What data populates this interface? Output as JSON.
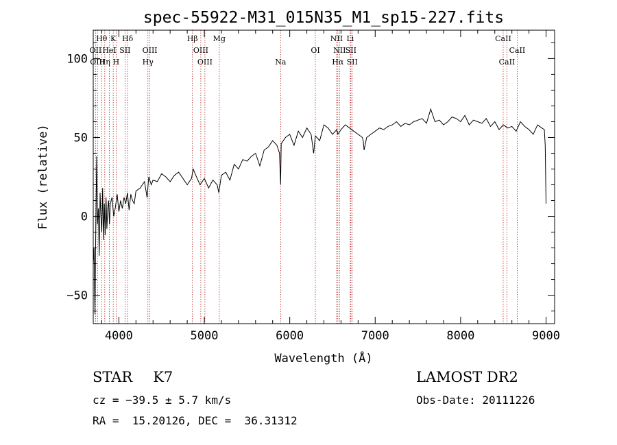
{
  "chart_data": {
    "type": "line",
    "title": "spec-55922-M31_015N35_M1_sp15-227.fits",
    "xlabel": "Wavelength (Å)",
    "ylabel": "Flux (relative)",
    "xlim": [
      3700,
      9100
    ],
    "ylim": [
      -68,
      118
    ],
    "x_ticks": [
      4000,
      5000,
      6000,
      7000,
      8000,
      9000
    ],
    "y_ticks": [
      -50,
      0,
      50,
      100
    ],
    "x_tick_labels": [
      "4000",
      "5000",
      "6000",
      "7000",
      "8000",
      "9000"
    ],
    "y_tick_labels": [
      "−50",
      "0",
      "50",
      "100"
    ],
    "grid": false,
    "series": [
      {
        "x": [
          3700,
          3710,
          3720,
          3730,
          3740,
          3750,
          3760,
          3770,
          3780,
          3790,
          3800,
          3810,
          3820,
          3830,
          3840,
          3850,
          3860,
          3870,
          3880,
          3890,
          3900,
          3920,
          3940,
          3960,
          3980,
          4000,
          4020,
          4040,
          4060,
          4080,
          4100,
          4120,
          4140,
          4160,
          4180,
          4200,
          4250,
          4300,
          4330,
          4350,
          4380,
          4400,
          4450,
          4500,
          4550,
          4600,
          4650,
          4700,
          4750,
          4800,
          4850,
          4870,
          4900,
          4950,
          5000,
          5050,
          5100,
          5150,
          5170,
          5200,
          5250,
          5300,
          5350,
          5400,
          5450,
          5500,
          5550,
          5600,
          5650,
          5700,
          5750,
          5800,
          5850,
          5880,
          5893,
          5900,
          5950,
          6000,
          6050,
          6100,
          6150,
          6200,
          6250,
          6280,
          6300,
          6350,
          6400,
          6450,
          6500,
          6550,
          6563,
          6600,
          6650,
          6700,
          6750,
          6800,
          6850,
          6860,
          6870,
          6900,
          6950,
          7000,
          7050,
          7100,
          7150,
          7200,
          7250,
          7300,
          7350,
          7400,
          7450,
          7500,
          7550,
          7600,
          7650,
          7700,
          7750,
          7800,
          7850,
          7900,
          7950,
          8000,
          8050,
          8100,
          8150,
          8200,
          8250,
          8300,
          8350,
          8400,
          8450,
          8500,
          8550,
          8600,
          8650,
          8700,
          8750,
          8800,
          8850,
          8900,
          8950,
          8980,
          8990,
          9000
        ],
        "y": [
          -30,
          -20,
          -62,
          -10,
          38,
          -5,
          5,
          -25,
          15,
          0,
          -10,
          18,
          -15,
          8,
          -12,
          12,
          -8,
          5,
          10,
          -5,
          8,
          12,
          0,
          6,
          14,
          3,
          10,
          5,
          12,
          8,
          15,
          4,
          14,
          10,
          8,
          16,
          18,
          22,
          12,
          25,
          20,
          23,
          22,
          27,
          25,
          22,
          26,
          28,
          24,
          20,
          24,
          30,
          26,
          20,
          24,
          18,
          23,
          20,
          15,
          26,
          28,
          23,
          33,
          30,
          36,
          35,
          38,
          40,
          32,
          42,
          44,
          48,
          45,
          40,
          20,
          46,
          50,
          52,
          45,
          54,
          50,
          56,
          52,
          40,
          51,
          48,
          58,
          56,
          52,
          55,
          52,
          55,
          58,
          56,
          54,
          52,
          50,
          48,
          42,
          50,
          52,
          54,
          56,
          55,
          57,
          58,
          60,
          57,
          59,
          58,
          60,
          61,
          62,
          59,
          68,
          60,
          61,
          58,
          60,
          63,
          62,
          60,
          64,
          58,
          61,
          60,
          59,
          62,
          57,
          60,
          55,
          58,
          56,
          57,
          54,
          60,
          57,
          55,
          52,
          58,
          56,
          55,
          45,
          8
        ]
      }
    ],
    "spectral_lines": [
      {
        "name": "Hθ",
        "x": 3798,
        "row": 1
      },
      {
        "name": "K",
        "x": 3934,
        "row": 1
      },
      {
        "name": "Hδ",
        "x": 4102,
        "row": 1
      },
      {
        "name": "Hβ",
        "x": 4861,
        "row": 1
      },
      {
        "name": "Mg",
        "x": 5175,
        "row": 1
      },
      {
        "name": "NII",
        "x": 6548,
        "row": 1
      },
      {
        "name": "Li",
        "x": 6708,
        "row": 1
      },
      {
        "name": "CaII",
        "x": 8498,
        "row": 1
      },
      {
        "name": "OII",
        "x": 3727,
        "row": 2
      },
      {
        "name": "HeI",
        "x": 3889,
        "row": 2
      },
      {
        "name": "SII",
        "x": 4072,
        "row": 2
      },
      {
        "name": "OIII",
        "x": 4363,
        "row": 2
      },
      {
        "name": "OIII",
        "x": 4959,
        "row": 2
      },
      {
        "name": "OI",
        "x": 6300,
        "row": 2
      },
      {
        "name": "NII",
        "x": 6583,
        "row": 2
      },
      {
        "name": "SII",
        "x": 6716,
        "row": 2
      },
      {
        "name": "CaII",
        "x": 8662,
        "row": 2
      },
      {
        "name": "OIII",
        "x": 3750,
        "row": 3
      },
      {
        "name": "Hη",
        "x": 3835,
        "row": 3
      },
      {
        "name": "H",
        "x": 3968,
        "row": 3
      },
      {
        "name": "Hγ",
        "x": 4340,
        "row": 3
      },
      {
        "name": "OIII",
        "x": 5007,
        "row": 3
      },
      {
        "name": "Na",
        "x": 5893,
        "row": 3
      },
      {
        "name": "Hα",
        "x": 6563,
        "row": 3
      },
      {
        "name": "SII",
        "x": 6731,
        "row": 3
      },
      {
        "name": "CaII",
        "x": 8542,
        "row": 3
      }
    ],
    "line_color": "#000000",
    "marker_color": "#b22222"
  },
  "info": {
    "class": "STAR",
    "subclass": "K7",
    "survey": "LAMOST DR2",
    "redshift": "cz = −39.5 ± 5.7 km/s",
    "obs_date": "Obs-Date: 20111226",
    "coords": "RA =  15.20126, DEC =  36.31312"
  }
}
